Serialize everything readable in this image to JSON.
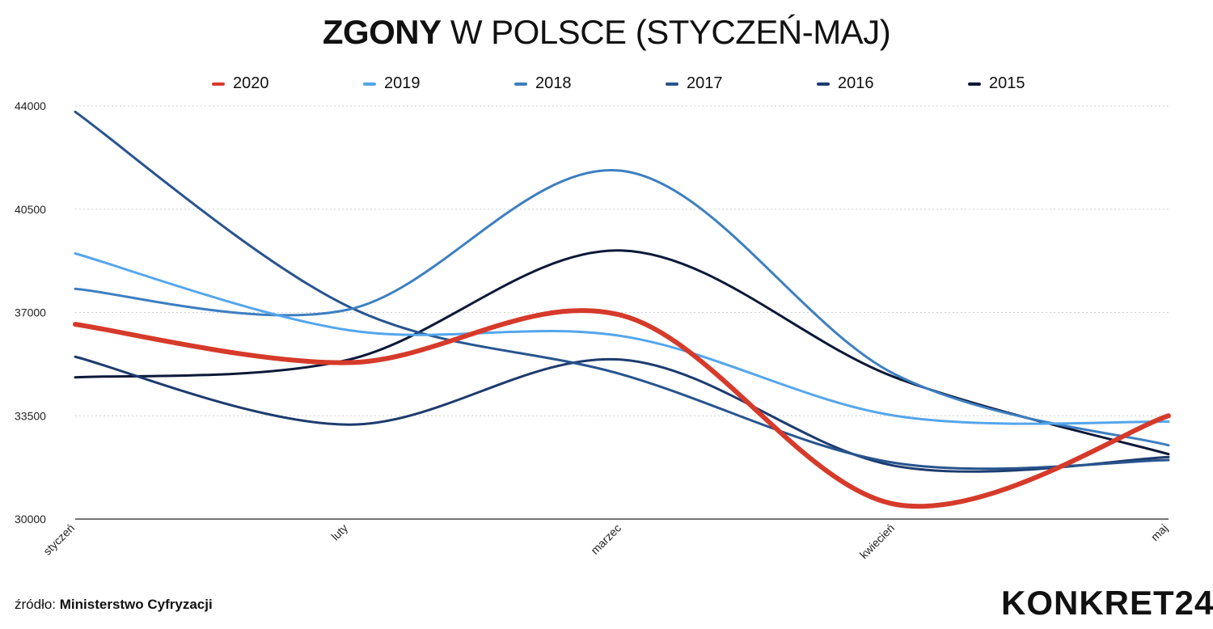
{
  "title": {
    "bold": "ZGONY",
    "rest": "W POLSCE (STYCZEŃ-MAJ)"
  },
  "source": {
    "label": "źródło:",
    "value": "Ministerstwo Cyfryzacji"
  },
  "logo": "KONKRET24",
  "chart_data": {
    "type": "line",
    "title": "ZGONY W POLSCE (STYCZEŃ-MAJ)",
    "categories": [
      "styczeń",
      "luty",
      "marzec",
      "kwiecień",
      "maj"
    ],
    "y_ticks": [
      30000,
      33500,
      37000,
      40500,
      44000
    ],
    "ylim": [
      30000,
      44000
    ],
    "grid": true,
    "legend_position": "top",
    "smooth": true,
    "series": [
      {
        "name": "2015",
        "color": "#0b1838",
        "width": 3,
        "values": [
          34800,
          35400,
          39100,
          34800,
          32200
        ]
      },
      {
        "name": "2016",
        "color": "#1d3b6e",
        "width": 3,
        "values": [
          35500,
          33200,
          35400,
          31800,
          32100
        ]
      },
      {
        "name": "2017",
        "color": "#27548f",
        "width": 3,
        "values": [
          43800,
          37200,
          34900,
          31900,
          32000
        ]
      },
      {
        "name": "2018",
        "color": "#3d7fc1",
        "width": 3,
        "values": [
          37800,
          37100,
          41800,
          34900,
          32500
        ]
      },
      {
        "name": "2019",
        "color": "#54a6ec",
        "width": 3,
        "values": [
          39000,
          36400,
          36200,
          33500,
          33300
        ]
      },
      {
        "name": "2020",
        "color": "#d63a2a",
        "width": 6,
        "values": [
          36600,
          35300,
          36900,
          30500,
          33500
        ]
      }
    ]
  }
}
